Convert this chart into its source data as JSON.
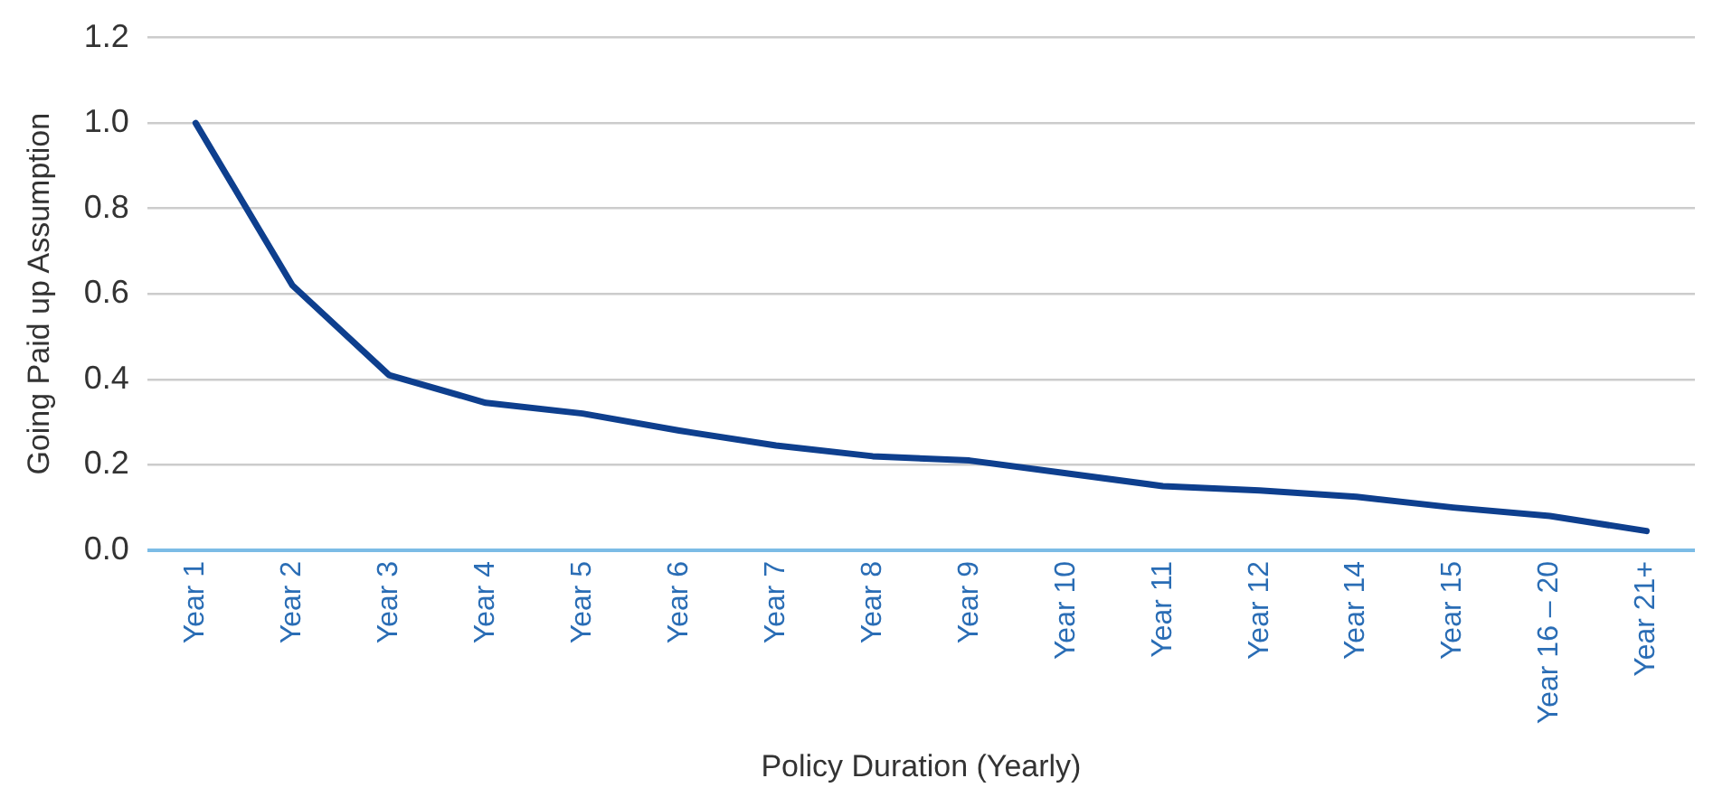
{
  "chart_data": {
    "type": "line",
    "xlabel": "Policy Duration (Yearly)",
    "ylabel": "Going Paid up Assumption",
    "categories": [
      "Year 1",
      "Year 2",
      "Year 3",
      "Year 4",
      "Year 5",
      "Year 6",
      "Year 7",
      "Year 8",
      "Year 9",
      "Year 10",
      "Year 11",
      "Year 12",
      "Year 14",
      "Year 15",
      "Year 16 – 20",
      "Year 21+"
    ],
    "series": [
      {
        "color": "#0e3f8e",
        "values": [
          1.0,
          0.62,
          0.41,
          0.345,
          0.32,
          0.28,
          0.245,
          0.22,
          0.21,
          0.18,
          0.15,
          0.14,
          0.125,
          0.1,
          0.08,
          0.045
        ]
      }
    ],
    "ylim": [
      0,
      1.2
    ],
    "yticks": [
      {
        "value": 0,
        "label": "0.0"
      },
      0.2,
      0.4,
      0.6,
      0.8,
      {
        "value": 1,
        "label": "1.0"
      },
      1.2
    ],
    "grid": "y",
    "legend": false,
    "marker": "none",
    "line_style": "solid"
  }
}
